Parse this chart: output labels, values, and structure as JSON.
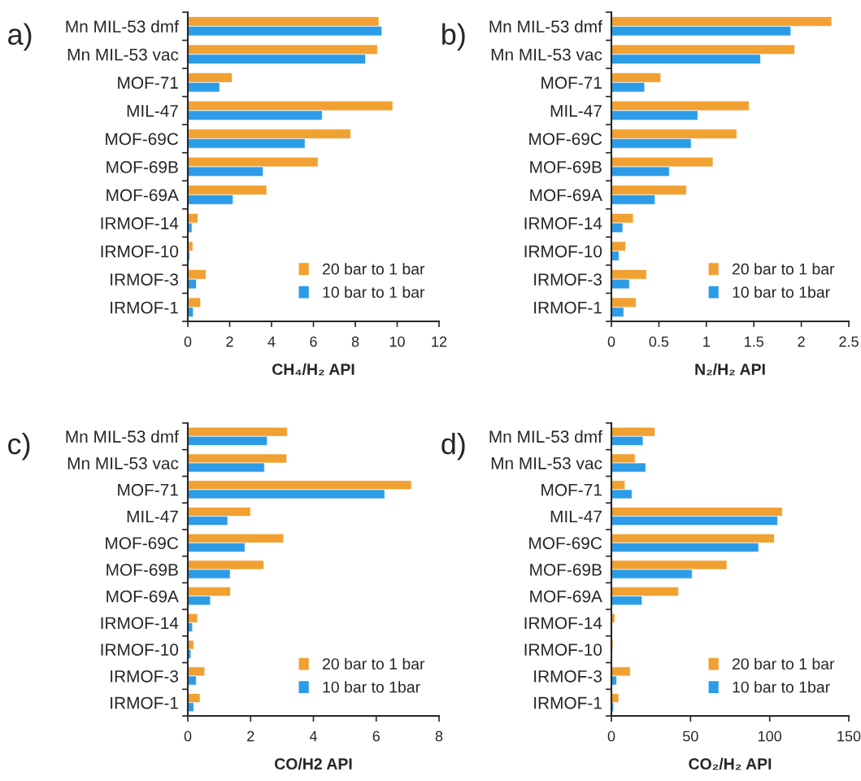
{
  "chart_data": [
    {
      "type": "bar",
      "orientation": "horizontal",
      "title": "a)",
      "xlabel": "CH₄/H₂ API",
      "categories": [
        "Mn MIL-53 dmf",
        "Mn MIL-53 vac",
        "MOF-71",
        "MIL-47",
        "MOF-69C",
        "MOF-69B",
        "MOF-69A",
        "IRMOF-14",
        "IRMOF-10",
        "IRMOF-3",
        "IRMOF-1"
      ],
      "xlim": [
        0,
        12
      ],
      "xticks": [
        0,
        2,
        4,
        6,
        8,
        10,
        12
      ],
      "legend": "bottom right",
      "grid": false,
      "series": [
        {
          "name": "20 bar to 1 bar",
          "color": "#f0a132",
          "values": [
            9.13,
            9.06,
            2.12,
            9.79,
            7.78,
            6.22,
            3.77,
            0.48,
            0.24,
            0.87,
            0.61
          ]
        },
        {
          "name": "10 bar to 1 bar",
          "color": "#2c9ce8",
          "values": [
            9.27,
            8.49,
            1.52,
            6.42,
            5.6,
            3.6,
            2.16,
            0.2,
            0.09,
            0.41,
            0.26
          ]
        }
      ]
    },
    {
      "type": "bar",
      "orientation": "horizontal",
      "title": "b)",
      "xlabel": "N₂/H₂ API",
      "categories": [
        "Mn MIL-53 dmf",
        "Mn MIL-53 vac",
        "MOF-71",
        "MIL-47",
        "MOF-69C",
        "MOF-69B",
        "MOF-69A",
        "IRMOF-14",
        "IRMOF-10",
        "IRMOF-3",
        "IRMOF-1"
      ],
      "xlim": [
        0,
        2.5
      ],
      "xticks": [
        0,
        0.5,
        1,
        1.5,
        2,
        2.5
      ],
      "legend": "bottom right",
      "grid": false,
      "series": [
        {
          "name": "20 bar to 1 bar",
          "color": "#f0a132",
          "values": [
            2.32,
            1.93,
            0.52,
            1.45,
            1.32,
            1.07,
            0.79,
            0.23,
            0.15,
            0.37,
            0.26
          ]
        },
        {
          "name": "10 bar to 1bar",
          "color": "#2c9ce8",
          "values": [
            1.89,
            1.57,
            0.35,
            0.91,
            0.84,
            0.61,
            0.46,
            0.12,
            0.08,
            0.19,
            0.13
          ]
        }
      ]
    },
    {
      "type": "bar",
      "orientation": "horizontal",
      "title": "c)",
      "xlabel": "CO/H2 API",
      "categories": [
        "Mn MIL-53 dmf",
        "Mn MIL-53 vac",
        "MOF-71",
        "MIL-47",
        "MOF-69C",
        "MOF-69B",
        "MOF-69A",
        "IRMOF-14",
        "IRMOF-10",
        "IRMOF-3",
        "IRMOF-1"
      ],
      "xlim": [
        0,
        8
      ],
      "xticks": [
        0,
        2,
        4,
        6,
        8
      ],
      "legend": "bottom right",
      "grid": false,
      "series": [
        {
          "name": "20 bar to 1 bar",
          "color": "#f0a132",
          "values": [
            3.17,
            3.15,
            7.12,
            2.0,
            3.05,
            2.42,
            1.36,
            0.31,
            0.19,
            0.54,
            0.39
          ]
        },
        {
          "name": "10 bar to 1bar",
          "color": "#2c9ce8",
          "values": [
            2.53,
            2.44,
            6.27,
            1.27,
            1.82,
            1.35,
            0.72,
            0.15,
            0.1,
            0.27,
            0.19
          ]
        }
      ]
    },
    {
      "type": "bar",
      "orientation": "horizontal",
      "title": "d)",
      "xlabel": "CO₂/H₂ API",
      "categories": [
        "Mn MIL-53 dmf",
        "Mn MIL-53 vac",
        "MOF-71",
        "MIL-47",
        "MOF-69C",
        "MOF-69B",
        "MOF-69A",
        "IRMOF-14",
        "IRMOF-10",
        "IRMOF-3",
        "IRMOF-1"
      ],
      "xlim": [
        0,
        150
      ],
      "xticks": [
        0,
        50,
        100,
        150
      ],
      "legend": "bottom right",
      "grid": false,
      "series": [
        {
          "name": "20 bar to 1 bar",
          "color": "#f0a132",
          "values": [
            27.5,
            15,
            8.6,
            108,
            103,
            73,
            42.5,
            2.2,
            1,
            12,
            4.6
          ]
        },
        {
          "name": "10 bar to 1bar",
          "color": "#2c9ce8",
          "values": [
            20,
            21.7,
            13,
            105,
            93,
            51,
            19.4,
            null,
            null,
            3.3,
            1.4
          ]
        }
      ]
    }
  ]
}
